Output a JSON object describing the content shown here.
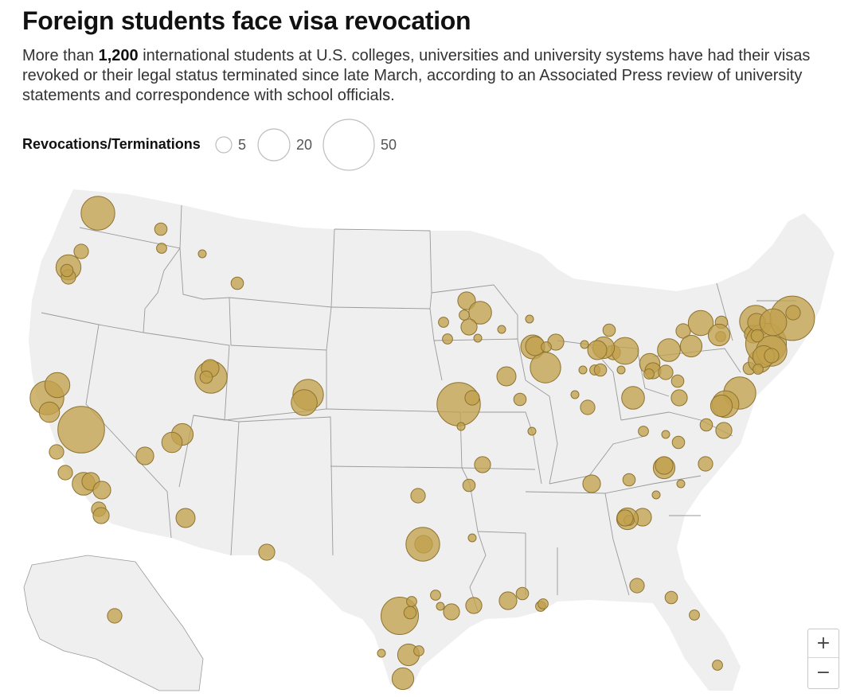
{
  "title": "Foreign students face visa revocation",
  "subtitle": {
    "prefix": "More than ",
    "highlight": "1,200",
    "suffix": " international students at U.S. colleges, universities and university systems have had their visas revoked or their legal status terminated since late March, according to an Associated Press review of university statements and correspondence with school officials."
  },
  "legend": {
    "title": "Revocations/Terminations",
    "items": [
      {
        "value": 5,
        "label": "5"
      },
      {
        "value": 20,
        "label": "20"
      },
      {
        "value": 50,
        "label": "50"
      }
    ]
  },
  "colors": {
    "bubble_fill": "#c2a14d",
    "bubble_stroke": "#8e7330",
    "land": "#efefef",
    "borders": "#9a9a9a"
  },
  "zoom_controls": {
    "zoom_in_label": "+",
    "zoom_out_label": "−"
  },
  "locations": [
    {
      "region": "WA",
      "count": 22
    },
    {
      "region": "WA",
      "count": 3
    },
    {
      "region": "WA",
      "count": 2
    },
    {
      "region": "WA",
      "count": 4
    },
    {
      "region": "OR",
      "count": 12
    },
    {
      "region": "OR",
      "count": 4
    },
    {
      "region": "OR",
      "count": 3
    },
    {
      "region": "MT",
      "count": 1
    },
    {
      "region": "MT",
      "count": 3
    },
    {
      "region": "CA",
      "count": 22
    },
    {
      "region": "CA",
      "count": 12
    },
    {
      "region": "CA",
      "count": 8
    },
    {
      "region": "CA",
      "count": 42
    },
    {
      "region": "CA",
      "count": 4
    },
    {
      "region": "CA",
      "count": 4
    },
    {
      "region": "CA",
      "count": 10
    },
    {
      "region": "CA",
      "count": 6
    },
    {
      "region": "CA",
      "count": 6
    },
    {
      "region": "CA",
      "count": 4
    },
    {
      "region": "CA",
      "count": 5
    },
    {
      "region": "NV",
      "count": 6
    },
    {
      "region": "UT",
      "count": 20
    },
    {
      "region": "UT",
      "count": 6
    },
    {
      "region": "UT",
      "count": 3
    },
    {
      "region": "AZ",
      "count": 9
    },
    {
      "region": "AZ",
      "count": 8
    },
    {
      "region": "AZ",
      "count": 7
    },
    {
      "region": "CO",
      "count": 18
    },
    {
      "region": "CO",
      "count": 13
    },
    {
      "region": "NM",
      "count": 5
    },
    {
      "region": "KS",
      "count": 36
    },
    {
      "region": "KS",
      "count": 4
    },
    {
      "region": "KS",
      "count": 1
    },
    {
      "region": "OK",
      "count": 4
    },
    {
      "region": "OK",
      "count": 3
    },
    {
      "region": "OK",
      "count": 1
    },
    {
      "region": "MO",
      "count": 5
    },
    {
      "region": "TX",
      "count": 27
    },
    {
      "region": "TX",
      "count": 6
    },
    {
      "region": "TX",
      "count": 22
    },
    {
      "region": "TX",
      "count": 2
    },
    {
      "region": "TX",
      "count": 9
    },
    {
      "region": "TX",
      "count": 2
    },
    {
      "region": "TX",
      "count": 1
    },
    {
      "region": "TX",
      "count": 9
    },
    {
      "region": "TX",
      "count": 3
    },
    {
      "region": "TX",
      "count": 1
    },
    {
      "region": "TX",
      "count": 2
    },
    {
      "region": "TX",
      "count": 5
    },
    {
      "region": "LA",
      "count": 5
    },
    {
      "region": "LA",
      "count": 6
    },
    {
      "region": "LA",
      "count": 3
    },
    {
      "region": "LA",
      "count": 2
    },
    {
      "region": "LA",
      "count": 2
    },
    {
      "region": "MN",
      "count": 6
    },
    {
      "region": "MN",
      "count": 10
    },
    {
      "region": "MN",
      "count": 5
    },
    {
      "region": "MN",
      "count": 2
    },
    {
      "region": "MN",
      "count": 2
    },
    {
      "region": "IA",
      "count": 2
    },
    {
      "region": "IA",
      "count": 1
    },
    {
      "region": "IA",
      "count": 1
    },
    {
      "region": "WI",
      "count": 1
    },
    {
      "region": "WI",
      "count": 11
    },
    {
      "region": "IL",
      "count": 18
    },
    {
      "region": "IL",
      "count": 5
    },
    {
      "region": "IL",
      "count": 7
    },
    {
      "region": "IL",
      "count": 2
    },
    {
      "region": "IL",
      "count": 3
    },
    {
      "region": "IL",
      "count": 1
    },
    {
      "region": "IL",
      "count": 7
    },
    {
      "region": "MO",
      "count": 3
    },
    {
      "region": "MI",
      "count": 4
    },
    {
      "region": "MI",
      "count": 14
    },
    {
      "region": "MI",
      "count": 9
    },
    {
      "region": "MI",
      "count": 7
    },
    {
      "region": "MI",
      "count": 2
    },
    {
      "region": "MI",
      "count": 3
    },
    {
      "region": "MI",
      "count": 1
    },
    {
      "region": "MI",
      "count": 1
    },
    {
      "region": "MI",
      "count": 1
    },
    {
      "region": "IN",
      "count": 4
    },
    {
      "region": "IN",
      "count": 1
    },
    {
      "region": "IN",
      "count": 8
    },
    {
      "region": "OH",
      "count": 5
    },
    {
      "region": "OH",
      "count": 4
    },
    {
      "region": "OH",
      "count": 10
    },
    {
      "region": "OH",
      "count": 3
    },
    {
      "region": "OH",
      "count": 5
    },
    {
      "region": "OH",
      "count": 4
    },
    {
      "region": "PA",
      "count": 12
    },
    {
      "region": "PA",
      "count": 9
    },
    {
      "region": "PA",
      "count": 3
    },
    {
      "region": "PA",
      "count": 2
    },
    {
      "region": "PA",
      "count": 9
    },
    {
      "region": "NY",
      "count": 20
    },
    {
      "region": "NY",
      "count": 6
    },
    {
      "region": "NY",
      "count": 3
    },
    {
      "region": "NY",
      "count": 10
    },
    {
      "region": "NY",
      "count": 32
    },
    {
      "region": "NY",
      "count": 18
    },
    {
      "region": "NY",
      "count": 6
    },
    {
      "region": "NJ",
      "count": 3
    },
    {
      "region": "NJ",
      "count": 9
    },
    {
      "region": "NJ",
      "count": 2
    },
    {
      "region": "NJ",
      "count": 20
    },
    {
      "region": "NJ",
      "count": 4
    },
    {
      "region": "MA",
      "count": 38
    },
    {
      "region": "MA",
      "count": 14
    },
    {
      "region": "MA",
      "count": 4
    },
    {
      "region": "MD",
      "count": 14
    },
    {
      "region": "MD",
      "count": 9
    },
    {
      "region": "MD",
      "count": 5
    },
    {
      "region": "VA",
      "count": 3
    },
    {
      "region": "VA",
      "count": 2
    },
    {
      "region": "VA",
      "count": 1
    },
    {
      "region": "WV",
      "count": 2
    },
    {
      "region": "WV",
      "count": 10
    },
    {
      "region": "KY",
      "count": 4
    },
    {
      "region": "KY",
      "count": 3
    },
    {
      "region": "KY",
      "count": 1
    },
    {
      "region": "NC",
      "count": 9
    },
    {
      "region": "NC",
      "count": 6
    },
    {
      "region": "NC",
      "count": 6
    },
    {
      "region": "NC",
      "count": 3
    },
    {
      "region": "NC",
      "count": 1
    },
    {
      "region": "TN",
      "count": 6
    },
    {
      "region": "TN",
      "count": 9
    },
    {
      "region": "SC",
      "count": 2
    },
    {
      "region": "SC",
      "count": 5
    },
    {
      "region": "GA",
      "count": 4
    },
    {
      "region": "GA",
      "count": 3
    },
    {
      "region": "GA",
      "count": 2
    },
    {
      "region": "GA",
      "count": 2
    },
    {
      "region": "FL",
      "count": 4
    },
    {
      "region": "FL",
      "count": 8
    },
    {
      "region": "FL",
      "count": 12
    },
    {
      "region": "FL",
      "count": 14
    },
    {
      "region": "AK",
      "count": 3
    }
  ]
}
